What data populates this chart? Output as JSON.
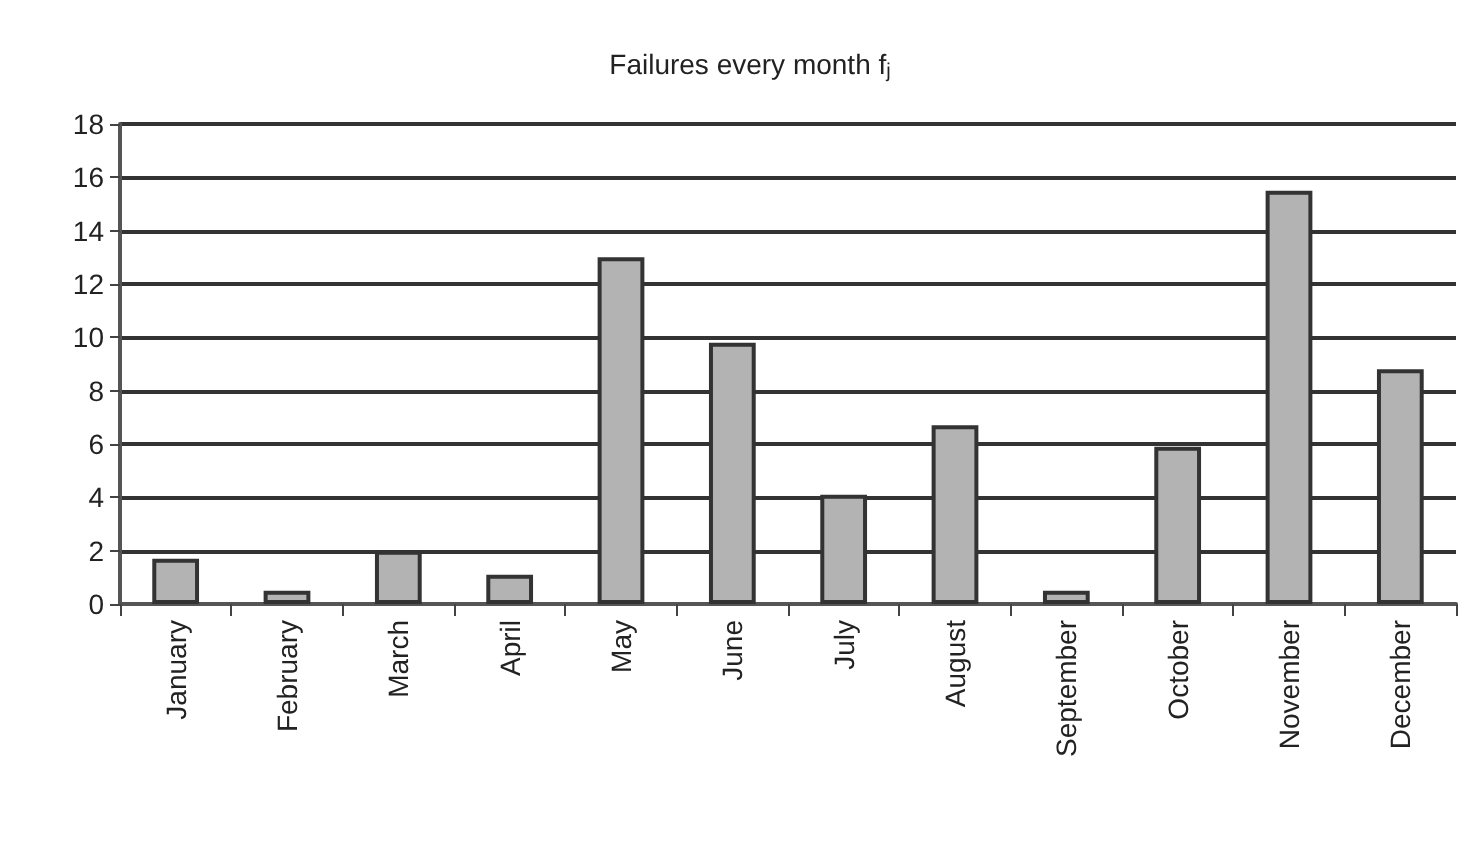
{
  "chart_data": {
    "type": "bar",
    "title": "Failures every month f$_{j}$",
    "categories": [
      "January",
      "February",
      "March",
      "April",
      "May",
      "June",
      "July",
      "August",
      "September",
      "October",
      "November",
      "December"
    ],
    "values": [
      1.7,
      0.5,
      2.0,
      1.1,
      13.0,
      9.8,
      4.1,
      6.7,
      0.5,
      5.9,
      15.5,
      8.8
    ],
    "color": "#b3b3b3",
    "ylim": [
      0,
      18
    ],
    "yticks": [
      0,
      2,
      4,
      6,
      8,
      10,
      12,
      14,
      16,
      18
    ],
    "grid": true
  }
}
